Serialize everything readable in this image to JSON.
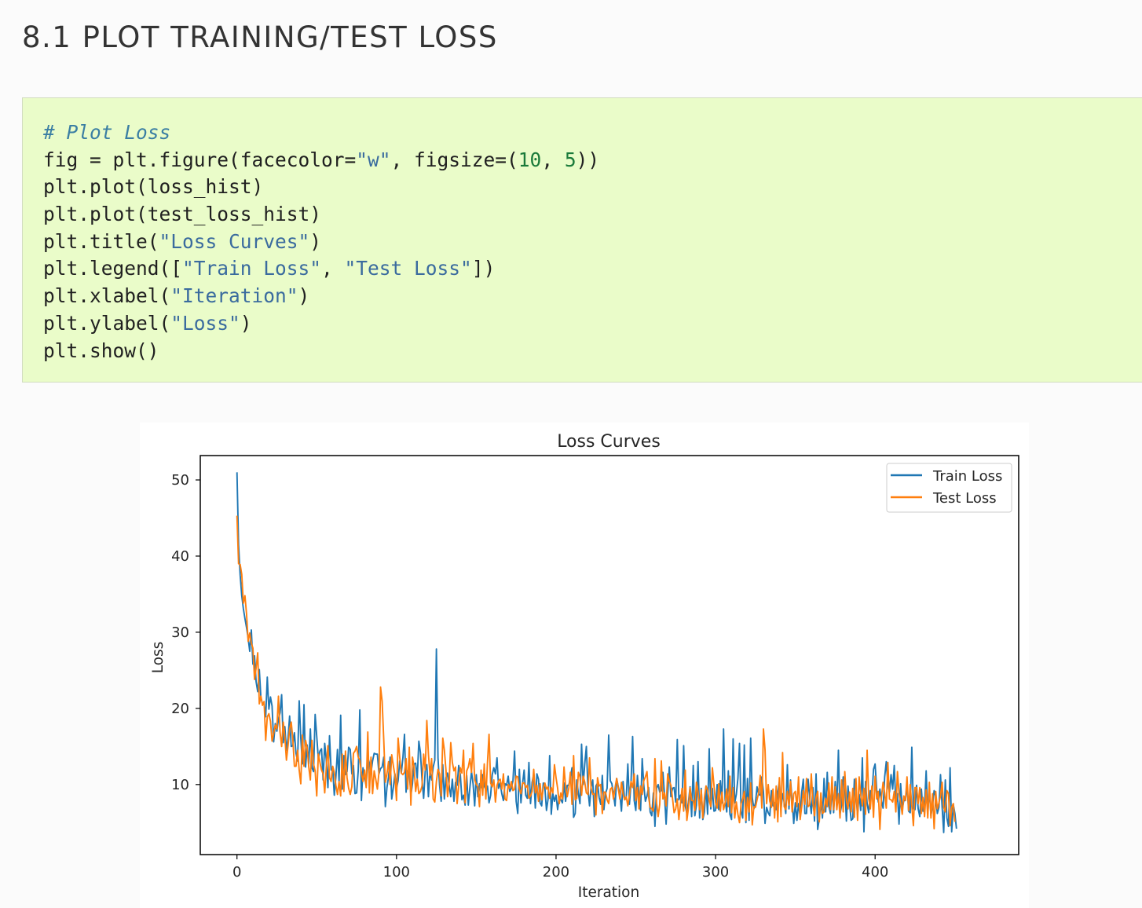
{
  "section": {
    "title": "8.1 PLOT TRAINING/TEST LOSS"
  },
  "code": {
    "language": "python",
    "lines": [
      [
        {
          "t": "comment",
          "v": "# Plot Loss"
        }
      ],
      [
        {
          "t": "plain",
          "v": "fig = plt.figure(facecolor="
        },
        {
          "t": "string",
          "v": "\"w\""
        },
        {
          "t": "plain",
          "v": ", figsize=("
        },
        {
          "t": "number",
          "v": "10"
        },
        {
          "t": "plain",
          "v": ", "
        },
        {
          "t": "number",
          "v": "5"
        },
        {
          "t": "plain",
          "v": "))"
        }
      ],
      [
        {
          "t": "plain",
          "v": "plt.plot(loss_hist)"
        }
      ],
      [
        {
          "t": "plain",
          "v": "plt.plot(test_loss_hist)"
        }
      ],
      [
        {
          "t": "plain",
          "v": "plt.title("
        },
        {
          "t": "string",
          "v": "\"Loss Curves\""
        },
        {
          "t": "plain",
          "v": ")"
        }
      ],
      [
        {
          "t": "plain",
          "v": "plt.legend(["
        },
        {
          "t": "string",
          "v": "\"Train Loss\""
        },
        {
          "t": "plain",
          "v": ", "
        },
        {
          "t": "string",
          "v": "\"Test Loss\""
        },
        {
          "t": "plain",
          "v": "])"
        }
      ],
      [
        {
          "t": "plain",
          "v": "plt.xlabel("
        },
        {
          "t": "string",
          "v": "\"Iteration\""
        },
        {
          "t": "plain",
          "v": ")"
        }
      ],
      [
        {
          "t": "plain",
          "v": "plt.ylabel("
        },
        {
          "t": "string",
          "v": "\"Loss\""
        },
        {
          "t": "plain",
          "v": ")"
        }
      ],
      [
        {
          "t": "plain",
          "v": "plt.show()"
        }
      ]
    ]
  },
  "colors": {
    "train": "#1f77b4",
    "test": "#ff7f0e",
    "code_background": "#eafcc9"
  },
  "chart_data": {
    "type": "line",
    "title": "Loss Curves",
    "xlabel": "Iteration",
    "ylabel": "Loss",
    "xlim": [
      -23,
      490
    ],
    "ylim": [
      0.8,
      53.2
    ],
    "xticks": [
      0,
      100,
      200,
      300,
      400
    ],
    "yticks": [
      10,
      20,
      30,
      40,
      50
    ],
    "grid": false,
    "legend_position": "top-right",
    "series": [
      {
        "name": "Train Loss",
        "color": "#1f77b4",
        "x_start": 0,
        "x_step": 1,
        "values": [
          51.0,
          41.5,
          37.5,
          34.8,
          33.1,
          31.8,
          30.6,
          29.2,
          27.5,
          30.3,
          25.8,
          26.9,
          23.5,
          22.2,
          25.1,
          21.4,
          20.6,
          20.6,
          18.9,
          24.1,
          19.9,
          21.5,
          20.3,
          15.6,
          18.0,
          17.0,
          18.6,
          19.4,
          21.8,
          15.5,
          17.6,
          14.5,
          16.1,
          19.0,
          15.0,
          15.1,
          16.8,
          14.1,
          13.1,
          21.0,
          16.1,
          12.7,
          20.5,
          12.3,
          15.2,
          12.7,
          17.3,
          12.2,
          11.7,
          19.2,
          16.3,
          13.4,
          14.4,
          14.7,
          10.6,
          15.4,
          13.2,
          9.6,
          16.4,
          11.9,
          12.1,
          8.6,
          11.0,
          14.6,
          10.4,
          19.1,
          9.4,
          13.8,
          11.3,
          11.7,
          14.9,
          14.6,
          11.4,
          12.5,
          8.8,
          8.9,
          11.8,
          19.8,
          7.9,
          12.2,
          10.9,
          9.8,
          13.6,
          12.8,
          11.5,
          13.1,
          14.1,
          14.0,
          14.0,
          11.4,
          12.1,
          12.3,
          13.6,
          7.1,
          9.6,
          11.0,
          13.6,
          8.1,
          9.6,
          11.4,
          9.5,
          10.5,
          13.1,
          11.5,
          13.5,
          16.6,
          9.0,
          11.8,
          11.6,
          8.6,
          10.1,
          12.7,
          12.8,
          10.8,
          15.7,
          14.2,
          10.6,
          8.2,
          11.8,
          12.6,
          8.4,
          11.8,
          10.6,
          12.3,
          13.2,
          27.8,
          13.5,
          9.9,
          7.8,
          12.6,
          8.1,
          10.9,
          11.5,
          9.9,
          8.4,
          10.7,
          7.8,
          10.3,
          9.9,
          12.5,
          11.3,
          8.0,
          8.6,
          7.3,
          11.2,
          7.3,
          9.6,
          11.7,
          10.1,
          7.2,
          11.3,
          8.4,
          10.1,
          9.6,
          11.3,
          9.8,
          9.3,
          9.8,
          7.6,
          8.6,
          11.3,
          12.2,
          11.4,
          13.5,
          9.5,
          10.2,
          8.8,
          7.9,
          10.1,
          9.9,
          11.1,
          9.1,
          9.5,
          10.5,
          14.4,
          7.8,
          6.2,
          12.0,
          7.6,
          10.1,
          11.9,
          8.6,
          8.2,
          12.9,
          7.5,
          10.3,
          11.3,
          6.9,
          11.4,
          10.7,
          7.6,
          7.2,
          10.2,
          9.6,
          6.6,
          8.1,
          13.8,
          6.1,
          8.8,
          7.8,
          8.6,
          6.7,
          8.4,
          8.0,
          7.6,
          10.2,
          7.8,
          9.9,
          9.9,
          10.9,
          12.2,
          5.7,
          6.2,
          10.6,
          8.8,
          7.5,
          15.3,
          10.0,
          12.7,
          15.0,
          9.4,
          7.2,
          9.7,
          10.6,
          5.8,
          9.8,
          10.2,
          8.3,
          7.4,
          11.2,
          6.7,
          8.8,
          9.5,
          16.5,
          10.5,
          10.1,
          8.7,
          7.2,
          10.8,
          9.7,
          8.8,
          6.5,
          10.4,
          8.0,
          8.2,
          12.7,
          7.4,
          10.2,
          16.3,
          7.9,
          6.6,
          11.2,
          8.5,
          6.6,
          13.4,
          9.9,
          7.8,
          8.5,
          9.6,
          6.4,
          5.9,
          8.9,
          4.5,
          9.5,
          10.0,
          9.0,
          9.2,
          11.6,
          8.6,
          4.8,
          8.8,
          12.3,
          8.4,
          9.5,
          9.6,
          7.7,
          15.9,
          8.0,
          8.6,
          7.6,
          15.1,
          7.2,
          6.2,
          7.7,
          9.7,
          5.8,
          12.5,
          5.9,
          7.3,
          13.0,
          5.6,
          9.5,
          5.4,
          6.4,
          9.8,
          6.1,
          14.7,
          6.8,
          9.5,
          6.5,
          6.6,
          10.0,
          6.7,
          10.5,
          7.6,
          17.3,
          7.9,
          6.4,
          11.8,
          6.1,
          5.4,
          16.0,
          7.6,
          8.7,
          10.8,
          15.4,
          6.5,
          5.6,
          15.2,
          5.0,
          10.8,
          5.3,
          16.1,
          8.3,
          6.8,
          7.6,
          9.7,
          8.7,
          8.6,
          11.0,
          9.0,
          4.9,
          7.0,
          6.3,
          5.9,
          9.2,
          7.2,
          7.6,
          6.7,
          9.0,
          10.4,
          6.7,
          8.8,
          7.7,
          6.2,
          12.6,
          6.8,
          10.6,
          7.8,
          4.9,
          7.6,
          5.3,
          7.5,
          5.8,
          9.0,
          10.7,
          6.2,
          6.2,
          10.7,
          8.2,
          6.2,
          9.6,
          5.2,
          11.4,
          4.1,
          5.5,
          7.7,
          5.6,
          10.8,
          6.4,
          11.6,
          7.2,
          6.2,
          9.6,
          6.3,
          10.4,
          7.4,
          14.5,
          6.1,
          7.3,
          11.0,
          10.2,
          5.2,
          9.8,
          7.5,
          5.3,
          5.5,
          10.7,
          8.8,
          6.0,
          8.7,
          6.6,
          13.5,
          3.8,
          10.4,
          7.5,
          6.3,
          9.2,
          8.3,
          12.0,
          12.7,
          9.3,
          7.7,
          9.4,
          7.8,
          6.9,
          11.0,
          13.0,
          10.0,
          9.0,
          11.3,
          9.4,
          12.5,
          7.3,
          8.8,
          4.8,
          10.1,
          6.8,
          7.9,
          7.9,
          10.0,
          6.5,
          6.3,
          14.9,
          6.8,
          6.7,
          9.9,
          6.8,
          5.8,
          9.4,
          6.5,
          7.2,
          11.8,
          6.2,
          9.4,
          5.9,
          7.2,
          9.2,
          8.4,
          6.2,
          7.0,
          11.3,
          7.1,
          3.7,
          10.6,
          5.6,
          4.5,
          12.2,
          3.8,
          7.4,
          6.2,
          4.2
        ]
      },
      {
        "name": "Test Loss",
        "color": "#ff7f0e",
        "x_start": 0,
        "x_step": 1,
        "values": [
          45.3,
          39.0,
          38.9,
          37.6,
          33.8,
          34.8,
          32.4,
          28.8,
          29.9,
          28.6,
          27.9,
          23.8,
          25.3,
          27.3,
          20.6,
          21.6,
          20.4,
          20.9,
          15.8,
          18.9,
          19.3,
          18.3,
          15.7,
          16.7,
          17.8,
          17.3,
          21.6,
          16.9,
          15.0,
          18.2,
          16.3,
          13.2,
          15.1,
          17.3,
          18.2,
          16.0,
          12.4,
          12.4,
          14.5,
          11.9,
          10.1,
          16.5,
          12.4,
          15.8,
          14.8,
          12.3,
          10.6,
          15.8,
          12.7,
          11.8,
          8.5,
          14.0,
          12.9,
          11.9,
          11.4,
          8.9,
          12.3,
          15.1,
          10.9,
          10.4,
          12.4,
          11.6,
          9.9,
          8.7,
          10.4,
          8.5,
          14.0,
          9.1,
          14.4,
          10.9,
          9.5,
          8.7,
          9.7,
          14.1,
          14.4,
          15.0,
          13.6,
          13.2,
          11.5,
          10.4,
          11.9,
          9.6,
          16.9,
          8.9,
          13.6,
          8.8,
          11.8,
          10.7,
          9.4,
          11.6,
          22.8,
          20.9,
          15.9,
          10.3,
          11.4,
          13.0,
          10.0,
          13.9,
          12.5,
          11.2,
          7.9,
          16.1,
          13.6,
          11.5,
          11.3,
          11.6,
          13.4,
          9.4,
          14.9,
          7.3,
          13.6,
          12.3,
          9.1,
          10.7,
          8.8,
          9.1,
          9.8,
          14.0,
          11.9,
          18.4,
          14.0,
          11.2,
          13.4,
          8.1,
          7.7,
          10.4,
          12.0,
          11.4,
          8.5,
          16.1,
          14.5,
          11.9,
          8.4,
          10.3,
          15.5,
          12.9,
          11.8,
          12.3,
          7.5,
          9.9,
          12.2,
          11.5,
          14.5,
          7.6,
          11.8,
          12.3,
          13.4,
          11.6,
          15.4,
          10.6,
          10.0,
          9.7,
          7.1,
          11.9,
          8.6,
          12.7,
          8.1,
          12.8,
          16.6,
          10.2,
          9.7,
          10.6,
          7.7,
          9.9,
          10.5,
          10.7,
          9.4,
          11.4,
          8.1,
          7.9,
          10.0,
          9.5,
          10.4,
          9.2,
          9.4,
          11.1,
          11.0,
          9.4,
          8.8,
          10.2,
          10.2,
          9.6,
          9.9,
          8.2,
          8.5,
          9.1,
          12.0,
          8.9,
          9.9,
          7.8,
          10.1,
          8.0,
          9.5,
          10.2,
          9.4,
          9.7,
          8.2,
          9.6,
          8.9,
          12.6,
          10.9,
          9.5,
          7.5,
          8.9,
          8.1,
          12.3,
          9.7,
          8.4,
          9.5,
          11.6,
          7.4,
          13.8,
          8.0,
          8.2,
          11.6,
          11.0,
          8.6,
          11.1,
          10.3,
          8.9,
          8.7,
          13.5,
          9.5,
          8.7,
          8.8,
          6.0,
          10.9,
          9.8,
          10.0,
          6.2,
          9.0,
          9.0,
          8.0,
          7.5,
          9.4,
          9.6,
          8.1,
          9.6,
          10.8,
          9.5,
          8.1,
          10.3,
          8.8,
          8.0,
          8.4,
          7.2,
          8.6,
          10.4,
          9.6,
          11.4,
          7.9,
          9.6,
          6.8,
          9.8,
          8.7,
          10.5,
          11.0,
          11.7,
          8.4,
          7.0,
          6.8,
          6.5,
          13.4,
          7.6,
          5.8,
          7.4,
          13.1,
          8.1,
          8.9,
          7.2,
          11.4,
          10.4,
          9.9,
          8.2,
          6.3,
          6.8,
          8.1,
          5.4,
          7.5,
          9.5,
          6.5,
          11.9,
          5.3,
          6.9,
          9.6,
          7.9,
          7.9,
          6.6,
          10.3,
          9.0,
          6.7,
          9.3,
          5.6,
          8.3,
          9.8,
          9.3,
          7.9,
          7.1,
          12.2,
          9.9,
          7.6,
          6.9,
          10.1,
          6.5,
          9.0,
          6.7,
          7.6,
          9.4,
          7.1,
          11.1,
          6.3,
          9.6,
          5.6,
          7.7,
          6.1,
          5.0,
          7.5,
          8.1,
          9.1,
          5.3,
          8.3,
          6.4,
          10.2,
          4.7,
          7.1,
          7.0,
          8.0,
          8.9,
          11.2,
          6.9,
          17.3,
          14.6,
          7.5,
          10.0,
          7.8,
          7.0,
          9.4,
          5.6,
          9.8,
          5.1,
          10.9,
          5.8,
          14.2,
          7.1,
          6.7,
          9.1,
          7.3,
          10.4,
          6.4,
          8.8,
          9.1,
          7.1,
          11.0,
          5.4,
          7.1,
          9.2,
          7.4,
          10.8,
          7.1,
          7.3,
          11.4,
          7.6,
          5.9,
          8.3,
          9.1,
          5.1,
          8.9,
          6.2,
          6.4,
          8.2,
          7.1,
          10.2,
          6.7,
          11.0,
          6.7,
          9.7,
          6.7,
          8.8,
          5.6,
          10.6,
          6.4,
          11.7,
          7.9,
          6.8,
          9.0,
          6.4,
          9.5,
          5.7,
          10.8,
          5.3,
          11.0,
          8.6,
          7.2,
          9.5,
          6.1,
          14.5,
          8.2,
          6.8,
          9.8,
          5.7,
          11.1,
          8.1,
          9.1,
          4.1,
          8.4,
          10.3,
          8.9,
          6.9,
          12.9,
          8.1,
          8.0,
          7.7,
          9.1,
          6.4,
          11.7,
          8.8,
          7.7,
          6.1,
          8.5,
          7.9,
          11.0,
          6.6,
          10.0,
          7.2,
          4.6,
          9.6,
          9.6,
          7.5,
          9.6,
          6.2,
          8.3,
          5.8,
          9.3,
          5.6,
          10.3,
          5.6,
          8.8,
          4.2,
          9.1,
          6.8,
          7.6,
          8.5,
          10.3,
          7.0,
          6.4,
          9.2,
          8.8,
          4.6,
          7.0,
          7.5,
          5.1
        ]
      }
    ]
  }
}
